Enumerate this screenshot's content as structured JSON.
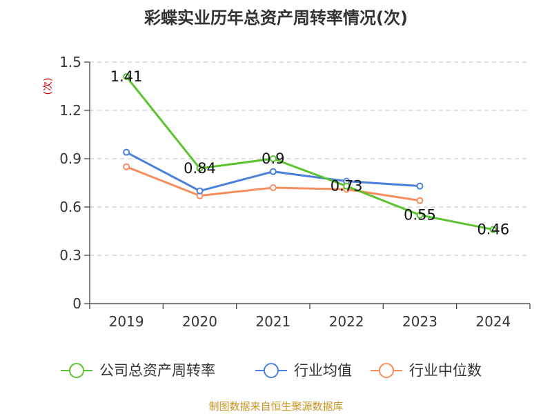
{
  "chart_data": {
    "type": "line",
    "title": "彩蝶实业历年总资产周转率情况(次)",
    "ylabel": "(次)",
    "xlabel": "",
    "categories": [
      "2019",
      "2020",
      "2021",
      "2022",
      "2023",
      "2024"
    ],
    "y_ticks": [
      "0",
      "0.3",
      "0.6",
      "0.9",
      "1.2",
      "1.5"
    ],
    "ylim": [
      0,
      1.5
    ],
    "grid": "horizontal dashed",
    "legend_position": "bottom",
    "series": [
      {
        "name": "公司总资产周转率",
        "color": "#5ac32e",
        "values": [
          1.41,
          0.84,
          0.9,
          0.73,
          0.55,
          0.46
        ],
        "labels": [
          "1.41",
          "0.84",
          "0.9",
          "0.73",
          "0.55",
          "0.46"
        ]
      },
      {
        "name": "行业均值",
        "color": "#4a7fdc",
        "values": [
          0.94,
          0.7,
          0.82,
          0.76,
          0.73,
          null
        ]
      },
      {
        "name": "行业中位数",
        "color": "#f88d5c",
        "values": [
          0.85,
          0.67,
          0.72,
          0.71,
          0.64,
          null
        ]
      }
    ]
  },
  "source_note": "制图数据来自恒生聚源数据库",
  "colors": {
    "title": "#333333",
    "axis": "#333333",
    "grid": "#cccccc",
    "ylabel": "#d40000",
    "source": "#c8961e"
  }
}
